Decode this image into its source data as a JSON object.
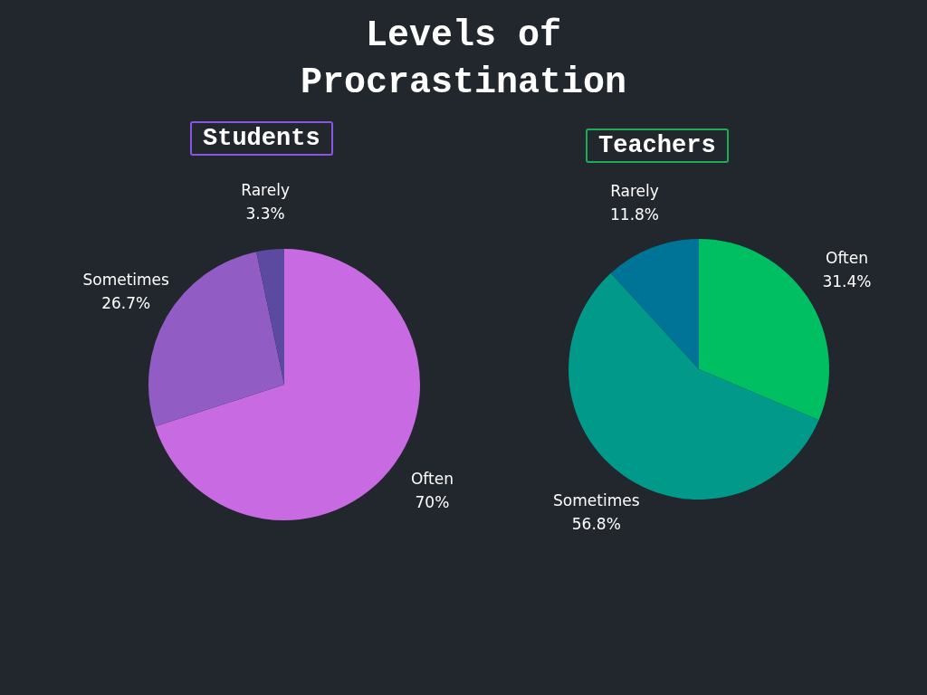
{
  "chart_data": [
    {
      "type": "pie",
      "title": "Levels of Procrastination",
      "subtitle": "Students",
      "categories": [
        "Often",
        "Sometimes",
        "Rarely"
      ],
      "values": [
        70,
        26.7,
        3.3
      ],
      "colors": [
        "#c86be3",
        "#915dc4",
        "#5b4aa0"
      ],
      "value_labels": [
        "70%",
        "26.7%",
        "3.3%"
      ],
      "legend": false
    },
    {
      "type": "pie",
      "subtitle": "Teachers",
      "categories": [
        "Often",
        "Sometimes",
        "Rarely"
      ],
      "values": [
        31.4,
        56.8,
        11.8
      ],
      "colors": [
        "#00bf63",
        "#00998a",
        "#007496"
      ],
      "value_labels": [
        "31.4%",
        "56.8%",
        "11.8%"
      ],
      "legend": false
    }
  ]
}
